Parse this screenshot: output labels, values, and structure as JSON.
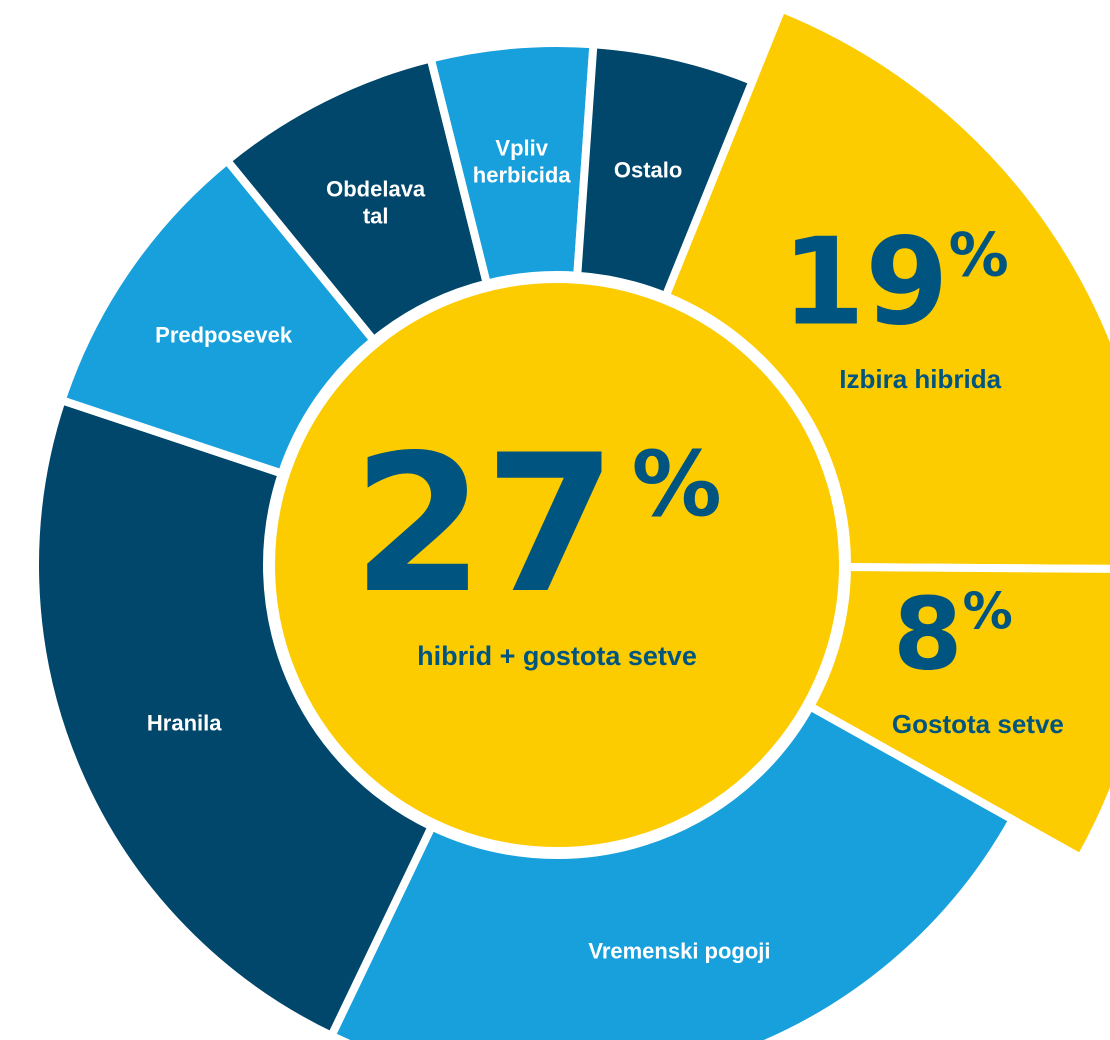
{
  "chart_data": {
    "type": "donut",
    "categories": [
      "Izbira hibrida",
      "Gostota setve",
      "Vremenski pogoji",
      "Hranila",
      "Predposevek",
      "Obdelava tal",
      "Vpliv herbicida",
      "Ostalo"
    ],
    "values": [
      19,
      8,
      24,
      23,
      9,
      7,
      5,
      5
    ],
    "colors": [
      "#fccb00",
      "#fccb00",
      "#17a0db",
      "#00476b",
      "#17a0db",
      "#00476b",
      "#17a0db",
      "#00476b"
    ],
    "explode": [
      true,
      true,
      false,
      false,
      false,
      false,
      false,
      false
    ],
    "unit": "%",
    "center_value": 27,
    "center_label": "hibrid + gostota setve",
    "center_color": "#fccb00"
  }
}
